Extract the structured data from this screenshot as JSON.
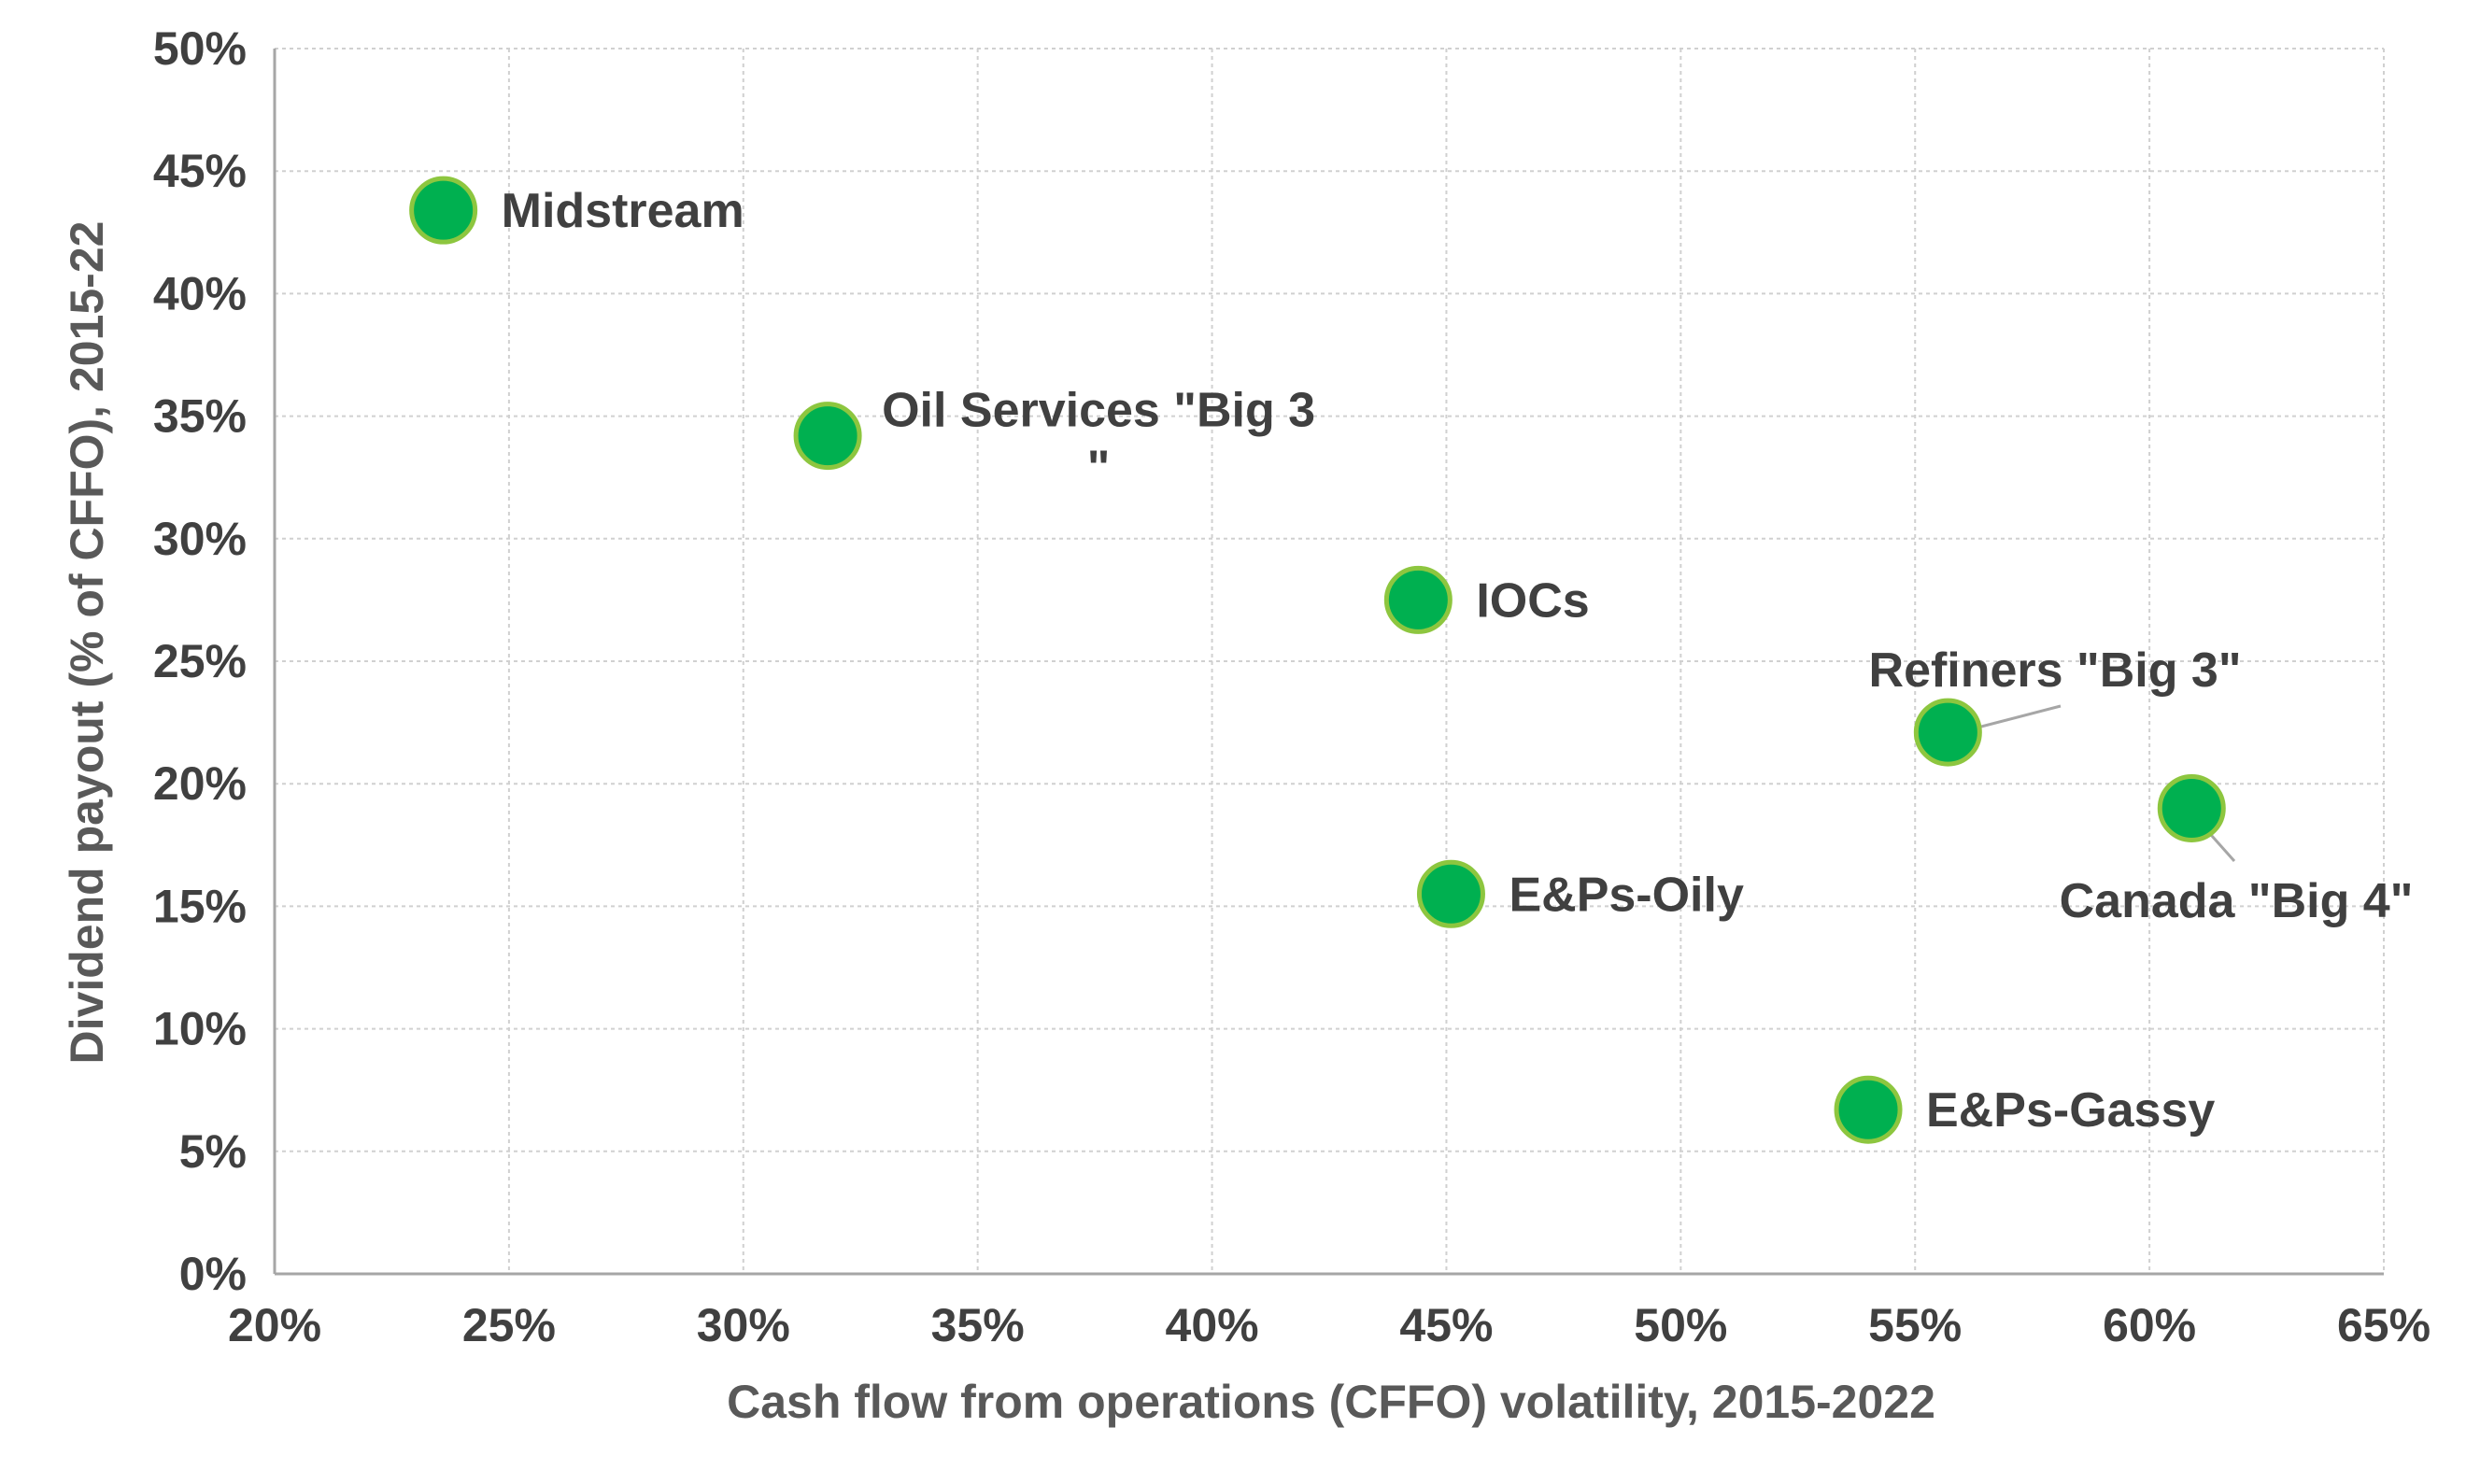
{
  "chart_data": {
    "type": "scatter",
    "title": "",
    "xlabel": "Cash flow from operations (CFFO) volatility, 2015-2022",
    "ylabel": "Dividend payout (% of CFFO), 2015-22",
    "xlim": [
      0.2,
      0.65
    ],
    "ylim": [
      0.0,
      0.5
    ],
    "x_ticks": [
      0.2,
      0.25,
      0.3,
      0.35,
      0.4,
      0.45,
      0.5,
      0.55,
      0.6,
      0.65
    ],
    "x_tick_labels": [
      "20%",
      "25%",
      "30%",
      "35%",
      "40%",
      "45%",
      "50%",
      "55%",
      "60%",
      "65%"
    ],
    "y_ticks": [
      0.0,
      0.05,
      0.1,
      0.15,
      0.2,
      0.25,
      0.3,
      0.35,
      0.4,
      0.45,
      0.5
    ],
    "y_tick_labels": [
      "0%",
      "5%",
      "10%",
      "15%",
      "20%",
      "25%",
      "30%",
      "35%",
      "40%",
      "45%",
      "50%"
    ],
    "grid": true,
    "legend": "none",
    "marker_color": "#00b050",
    "marker_edge_color": "#8dc63f",
    "points": [
      {
        "label": "Midstream",
        "x": 0.236,
        "y": 0.434
      },
      {
        "label": "Oil Services \"Big 3\"",
        "x": 0.318,
        "y": 0.342
      },
      {
        "label": "IOCs",
        "x": 0.444,
        "y": 0.275
      },
      {
        "label": "Refiners \"Big 3\"",
        "x": 0.557,
        "y": 0.221
      },
      {
        "label": "Canada \"Big 4\"",
        "x": 0.609,
        "y": 0.19
      },
      {
        "label": "E&Ps-Oily",
        "x": 0.451,
        "y": 0.155
      },
      {
        "label": "E&Ps-Gassy",
        "x": 0.54,
        "y": 0.067
      }
    ]
  }
}
